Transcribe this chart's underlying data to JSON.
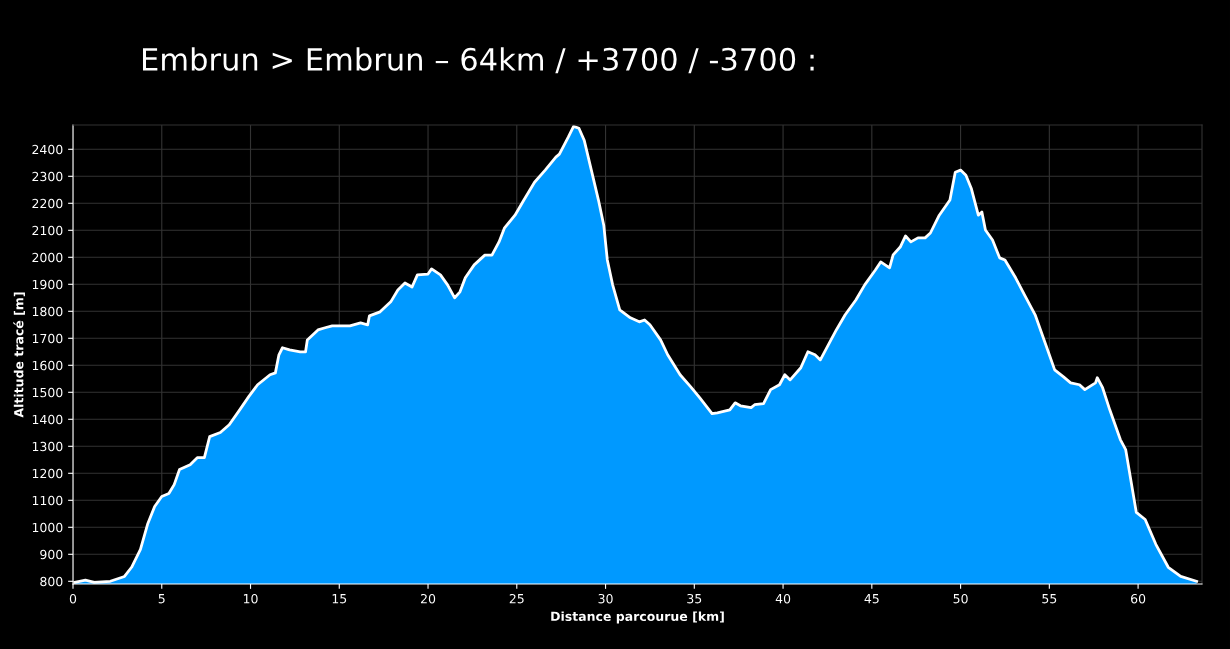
{
  "chart_data": {
    "type": "area",
    "title": "Embrun > Embrun – 64km / +3700 / -3700 :",
    "xlabel": "Distance parcourue [km]",
    "ylabel": "Altitude tracé [m]",
    "x": [
      0.1,
      0.7,
      1.2,
      2.1,
      2.9,
      3.3,
      3.8,
      4.2,
      4.6,
      5.0,
      5.4,
      5.7,
      6.0,
      6.6,
      7.0,
      7.4,
      7.7,
      8.3,
      8.8,
      9.4,
      9.9,
      10.4,
      11.1,
      11.4,
      11.6,
      11.8,
      12.2,
      12.8,
      13.1,
      13.2,
      13.8,
      14.2,
      14.6,
      15.0,
      15.6,
      16.2,
      16.6,
      16.7,
      17.3,
      17.9,
      18.3,
      18.7,
      19.1,
      19.4,
      20.0,
      20.2,
      20.7,
      21.1,
      21.5,
      21.8,
      22.1,
      22.6,
      23.2,
      23.6,
      24.0,
      24.3,
      24.9,
      25.4,
      26.0,
      26.6,
      27.2,
      27.4,
      27.9,
      28.2,
      28.5,
      28.8,
      29.2,
      29.6,
      29.9,
      30.1,
      30.4,
      30.8,
      31.4,
      31.9,
      32.2,
      32.5,
      33.1,
      33.5,
      34.2,
      34.8,
      35.3,
      36.0,
      36.3,
      37.0,
      37.3,
      37.6,
      38.2,
      38.4,
      38.9,
      39.3,
      39.8,
      40.1,
      40.4,
      41.0,
      41.4,
      41.8,
      42.1,
      42.4,
      43.0,
      43.5,
      44.1,
      44.6,
      45.2,
      45.5,
      46.0,
      46.2,
      46.6,
      46.9,
      47.2,
      47.6,
      48.0,
      48.3,
      48.8,
      49.4,
      49.7,
      50.0,
      50.3,
      50.6,
      51.0,
      51.2,
      51.4,
      51.8,
      52.2,
      52.5,
      53.1,
      53.6,
      54.2,
      54.8,
      55.3,
      55.8,
      56.2,
      56.7,
      57.0,
      57.6,
      57.7,
      58.0,
      58.4,
      59.0,
      59.3,
      59.9,
      60.4,
      61.0,
      61.7,
      62.4,
      63.3
    ],
    "series": [
      {
        "color": "#0099ff",
        "values": [
          796,
          804,
          796,
          800,
          818,
          852,
          918,
          1011,
          1077,
          1114,
          1125,
          1158,
          1214,
          1232,
          1258,
          1258,
          1336,
          1351,
          1380,
          1436,
          1484,
          1528,
          1565,
          1572,
          1639,
          1665,
          1657,
          1650,
          1650,
          1694,
          1731,
          1739,
          1746,
          1746,
          1746,
          1757,
          1750,
          1783,
          1798,
          1835,
          1879,
          1905,
          1890,
          1935,
          1938,
          1957,
          1935,
          1898,
          1850,
          1872,
          1924,
          1972,
          2008,
          2008,
          2057,
          2108,
          2156,
          2212,
          2278,
          2323,
          2371,
          2382,
          2445,
          2485,
          2478,
          2433,
          2323,
          2212,
          2119,
          1990,
          1898,
          1805,
          1776,
          1761,
          1768,
          1750,
          1694,
          1639,
          1565,
          1520,
          1480,
          1421,
          1424,
          1435,
          1461,
          1450,
          1443,
          1454,
          1458,
          1510,
          1528,
          1565,
          1546,
          1591,
          1650,
          1639,
          1620,
          1657,
          1731,
          1787,
          1842,
          1898,
          1953,
          1983,
          1961,
          2009,
          2038,
          2079,
          2057,
          2072,
          2072,
          2090,
          2156,
          2212,
          2315,
          2323,
          2304,
          2256,
          2156,
          2168,
          2101,
          2064,
          1998,
          1990,
          1924,
          1861,
          1787,
          1676,
          1583,
          1557,
          1535,
          1528,
          1510,
          1535,
          1554,
          1517,
          1436,
          1325,
          1288,
          1055,
          1029,
          937,
          852,
          818,
          800
        ]
      }
    ],
    "xlim": [
      0,
      63.6
    ],
    "xticks": [
      0,
      5,
      10,
      15,
      20,
      25,
      30,
      35,
      40,
      45,
      50,
      55,
      60
    ],
    "ylim": [
      790,
      2490
    ],
    "yticks": [
      800,
      900,
      1000,
      1100,
      1200,
      1300,
      1400,
      1500,
      1600,
      1700,
      1800,
      1900,
      2000,
      2100,
      2200,
      2300,
      2400
    ],
    "grid": true
  }
}
